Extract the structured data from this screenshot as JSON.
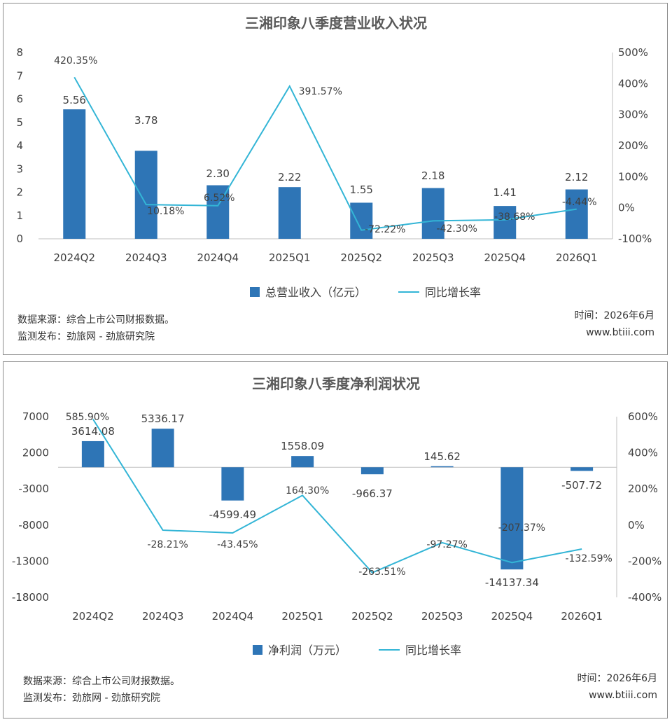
{
  "charts": [
    {
      "title": "三湘印象八季度营业收入状况",
      "footer": {
        "source": "数据来源：综合上市公司财报数据。",
        "publisher": "监测发布：劲旅网 - 劲旅研究院",
        "time": "时间：2026年6月",
        "site": "www.btiii.com"
      },
      "colors": {
        "bar": "#2e75b6",
        "line": "#33b5d6"
      }
    },
    {
      "title": "三湘印象八季度净利润状况",
      "footer": {
        "source": "数据来源：综合上市公司财报数据。",
        "publisher": "监测发布：劲旅网 - 劲旅研究院",
        "time": "时间：2026年6月",
        "site": "www.btiii.com"
      },
      "colors": {
        "bar": "#2e75b6",
        "line": "#33b5d6"
      }
    }
  ],
  "chart_data": [
    {
      "type": "bar",
      "title": "三湘印象八季度营业收入状况",
      "categories": [
        "2024Q2",
        "2024Q3",
        "2024Q4",
        "2025Q1",
        "2025Q2",
        "2025Q3",
        "2025Q4",
        "2026Q1"
      ],
      "series": [
        {
          "name": "总营业收入（亿元）",
          "type": "bar",
          "axis": "left",
          "values": [
            5.56,
            3.78,
            2.3,
            2.22,
            1.55,
            2.18,
            1.41,
            2.12
          ],
          "labels": [
            "5.56",
            "3.78",
            "2.30",
            "2.22",
            "1.55",
            "2.18",
            "1.41",
            "2.12"
          ]
        },
        {
          "name": "同比增长率",
          "type": "line",
          "axis": "right",
          "values": [
            420.35,
            10.18,
            6.52,
            391.57,
            -72.22,
            -42.3,
            -38.68,
            -4.44
          ],
          "labels": [
            "420.35%",
            "10.18%",
            "6.52%",
            "391.57%",
            "-72.22%",
            "-42.30%",
            "-38.68%",
            "-4.44%"
          ]
        }
      ],
      "ylim": [
        0,
        8
      ],
      "yticks": [
        "0",
        "1",
        "2",
        "3",
        "4",
        "5",
        "6",
        "7",
        "8"
      ],
      "y2lim": [
        -100,
        500
      ],
      "y2ticks": [
        "-100%",
        "0%",
        "100%",
        "200%",
        "300%",
        "400%",
        "500%"
      ],
      "legend": "bottom",
      "grid": false
    },
    {
      "type": "bar",
      "title": "三湘印象八季度净利润状况",
      "categories": [
        "2024Q2",
        "2024Q3",
        "2024Q4",
        "2025Q1",
        "2025Q2",
        "2025Q3",
        "2025Q4",
        "2026Q1"
      ],
      "series": [
        {
          "name": "净利润（万元）",
          "type": "bar",
          "axis": "left",
          "values": [
            3614.08,
            5336.17,
            -4599.49,
            1558.09,
            -966.37,
            145.62,
            -14137.34,
            -507.72
          ],
          "labels": [
            "3614.08",
            "5336.17",
            "-4599.49",
            "1558.09",
            "-966.37",
            "145.62",
            "-14137.34",
            "-507.72"
          ]
        },
        {
          "name": "同比增长率",
          "type": "line",
          "axis": "right",
          "values": [
            585.9,
            -28.21,
            -43.45,
            164.3,
            -263.51,
            -97.27,
            -207.37,
            -132.59
          ],
          "labels": [
            "585.90%",
            "-28.21%",
            "-43.45%",
            "164.30%",
            "-263.51%",
            "-97.27%",
            "-207.37%",
            "-132.59%"
          ]
        }
      ],
      "ylim": [
        -18000,
        7000
      ],
      "yticks": [
        "-18000",
        "-13000",
        "-8000",
        "-3000",
        "2000",
        "7000"
      ],
      "y2lim": [
        -400,
        600
      ],
      "y2ticks": [
        "-400%",
        "-200%",
        "0%",
        "200%",
        "400%",
        "600%"
      ],
      "legend": "bottom",
      "grid": false
    }
  ]
}
